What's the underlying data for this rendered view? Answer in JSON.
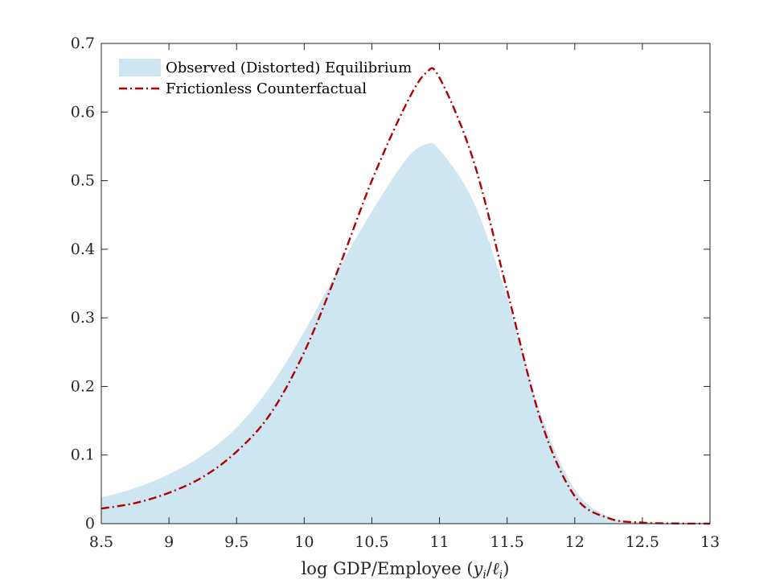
{
  "chart_data": {
    "type": "area",
    "title": "",
    "xlabel": "log GDP/Employee (",
    "xlabel_math": "y",
    "xlabel_sub": "i",
    "xlabel_slash": "/",
    "xlabel_ell": "ℓ",
    "xlabel_sub2": "i",
    "xlabel_close": ")",
    "ylabel": "",
    "xlim": [
      8.5,
      13
    ],
    "ylim": [
      0,
      0.7
    ],
    "xticks": [
      8.5,
      9,
      9.5,
      10,
      10.5,
      11,
      11.5,
      12,
      12.5,
      13
    ],
    "xtick_labels": [
      "8.5",
      "9",
      "9.5",
      "10",
      "10.5",
      "11",
      "11.5",
      "12",
      "12.5",
      "13"
    ],
    "yticks": [
      0,
      0.1,
      0.2,
      0.3,
      0.4,
      0.5,
      0.6,
      0.7
    ],
    "ytick_labels": [
      "0",
      "0.1",
      "0.2",
      "0.3",
      "0.4",
      "0.5",
      "0.6",
      "0.7"
    ],
    "grid": false,
    "legend_position": "top-left",
    "series": [
      {
        "name": "Observed (Distorted) Equilibrium",
        "style": "filled-area",
        "color": "#cde6f2",
        "x": [
          8.5,
          8.75,
          9.0,
          9.25,
          9.5,
          9.75,
          10.0,
          10.25,
          10.5,
          10.75,
          10.9,
          11.0,
          11.25,
          11.5,
          11.75,
          12.0,
          12.25,
          12.5,
          12.75,
          13.0
        ],
        "y": [
          0.038,
          0.052,
          0.072,
          0.1,
          0.14,
          0.2,
          0.28,
          0.37,
          0.455,
          0.53,
          0.553,
          0.545,
          0.47,
          0.33,
          0.16,
          0.05,
          0.01,
          0.002,
          0.0005,
          0.0
        ]
      },
      {
        "name": "Frictionless Counterfactual",
        "style": "dash-dot",
        "color": "#b00000",
        "x": [
          8.5,
          8.75,
          9.0,
          9.25,
          9.5,
          9.75,
          10.0,
          10.25,
          10.5,
          10.75,
          10.9,
          11.0,
          11.25,
          11.5,
          11.75,
          12.0,
          12.25,
          12.5,
          12.75,
          13.0
        ],
        "y": [
          0.022,
          0.03,
          0.045,
          0.068,
          0.105,
          0.16,
          0.25,
          0.37,
          0.5,
          0.61,
          0.657,
          0.65,
          0.53,
          0.34,
          0.15,
          0.04,
          0.008,
          0.0015,
          0.0003,
          0.0
        ]
      }
    ]
  }
}
